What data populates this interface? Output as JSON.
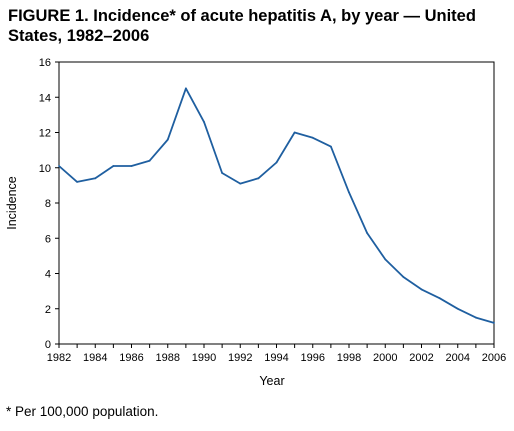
{
  "figure": {
    "title": "FIGURE 1. Incidence* of acute hepatitis A, by year — United States,  1982–2006",
    "footnote": "* Per 100,000 population."
  },
  "chart_data": {
    "type": "line",
    "title": "FIGURE 1. Incidence* of acute hepatitis A, by year — United States,  1982–2006",
    "xlabel": "Year",
    "ylabel": "Incidence",
    "xlim": [
      1982,
      2006
    ],
    "ylim": [
      0,
      16
    ],
    "grid": false,
    "x_ticks": [
      1982,
      1984,
      1986,
      1988,
      1990,
      1992,
      1994,
      1996,
      1998,
      2000,
      2002,
      2004,
      2006
    ],
    "x_ticklabels": [
      "1982",
      "1984",
      "1986",
      "1988",
      "1990",
      "1992",
      "1994",
      "1996",
      "1998",
      "2000",
      "2002",
      "2004",
      "2006"
    ],
    "y_ticks": [
      0,
      2,
      4,
      6,
      8,
      10,
      12,
      14,
      16
    ],
    "y_ticklabels": [
      "0",
      "2",
      "4",
      "6",
      "8",
      "10",
      "12",
      "14",
      "16"
    ],
    "line_color": "#1f5fa0",
    "series": [
      {
        "x": [
          1982,
          1983,
          1984,
          1985,
          1986,
          1987,
          1988,
          1989,
          1990,
          1991,
          1992,
          1993,
          1994,
          1995,
          1996,
          1997,
          1998,
          1999,
          2000,
          2001,
          2002,
          2003,
          2004,
          2005,
          2006
        ],
        "values": [
          10.1,
          9.2,
          9.4,
          10.1,
          10.1,
          10.4,
          11.6,
          14.5,
          12.6,
          9.7,
          9.1,
          9.4,
          10.3,
          12.0,
          11.7,
          11.2,
          8.6,
          6.3,
          4.8,
          3.8,
          3.1,
          2.6,
          2.0,
          1.5,
          1.2
        ]
      }
    ]
  }
}
